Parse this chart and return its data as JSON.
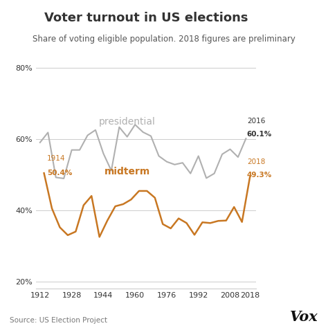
{
  "title": "Voter turnout in US elections",
  "subtitle": "Share of voting eligible population. 2018 figures are preliminary",
  "source": "Source: US Election Project",
  "presidential_years": [
    1912,
    1916,
    1920,
    1924,
    1928,
    1932,
    1936,
    1940,
    1944,
    1948,
    1952,
    1956,
    1960,
    1964,
    1968,
    1972,
    1976,
    1980,
    1984,
    1988,
    1992,
    1996,
    2000,
    2004,
    2008,
    2012,
    2016
  ],
  "presidential_values": [
    59.0,
    61.8,
    49.2,
    48.9,
    56.9,
    56.9,
    61.0,
    62.5,
    55.9,
    51.1,
    63.3,
    60.6,
    64.0,
    61.9,
    60.8,
    55.2,
    53.6,
    52.8,
    53.3,
    50.3,
    55.2,
    49.0,
    50.3,
    55.7,
    57.1,
    54.9,
    60.1
  ],
  "midterm_years": [
    1914,
    1918,
    1922,
    1926,
    1930,
    1934,
    1938,
    1942,
    1946,
    1950,
    1954,
    1958,
    1962,
    1966,
    1970,
    1974,
    1978,
    1982,
    1986,
    1990,
    1994,
    1998,
    2002,
    2006,
    2010,
    2014,
    2018
  ],
  "midterm_values": [
    50.4,
    40.5,
    35.2,
    33.0,
    34.0,
    41.4,
    44.0,
    32.5,
    37.1,
    41.1,
    41.7,
    43.0,
    45.4,
    45.4,
    43.5,
    36.1,
    34.9,
    37.7,
    36.4,
    33.1,
    36.6,
    36.4,
    37.0,
    37.1,
    40.9,
    36.7,
    49.3
  ],
  "presidential_color": "#b0b0b0",
  "midterm_color": "#c87722",
  "background_color": "#ffffff",
  "grid_color": "#cccccc",
  "text_color": "#333333",
  "xlim": [
    1910,
    2021
  ],
  "ylim": [
    18,
    87
  ],
  "yticks": [
    20,
    40,
    60,
    80
  ],
  "ytick_labels": [
    "20%",
    "40%",
    "60%",
    "80%"
  ],
  "xticks": [
    1912,
    1928,
    1944,
    1960,
    1976,
    1992,
    2008,
    2018
  ],
  "label_presidential": "presidential",
  "label_midterm": "midterm",
  "anno_1914_year": "1914",
  "anno_1914_val": "50.4%",
  "anno_2016_year": "2016",
  "anno_2016_val": "60.1%",
  "anno_2018_year": "2018",
  "anno_2018_val": "49.3%",
  "title_fontsize": 13,
  "subtitle_fontsize": 8.5,
  "source_fontsize": 7.5,
  "label_fontsize": 10,
  "anno_fontsize": 7.5,
  "tick_fontsize": 8
}
